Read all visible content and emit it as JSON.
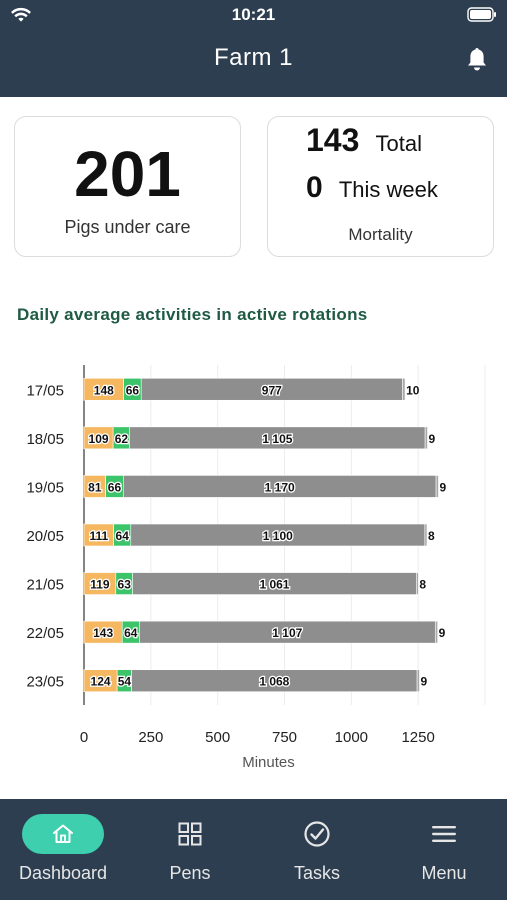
{
  "status": {
    "time": "10:21"
  },
  "header": {
    "title": "Farm 1"
  },
  "stats": {
    "pigs_count": "201",
    "pigs_label": "Pigs under care",
    "mortality_total": "143",
    "mortality_total_label": "Total",
    "mortality_week": "0",
    "mortality_week_label": "This week",
    "mortality_label": "Mortality"
  },
  "chart_title": "Daily average activities in active rotations",
  "chart_data": {
    "type": "bar",
    "orientation": "horizontal",
    "stacked": true,
    "categories": [
      "17/05",
      "18/05",
      "19/05",
      "20/05",
      "21/05",
      "22/05",
      "23/05"
    ],
    "series": [
      {
        "values": [
          148,
          109,
          81,
          111,
          119,
          143,
          124
        ],
        "labels": [
          "148",
          "109",
          "81",
          "111",
          "119",
          "143",
          "124"
        ],
        "color": "#f5b760"
      },
      {
        "values": [
          66,
          62,
          66,
          64,
          63,
          64,
          54
        ],
        "labels": [
          "66",
          "62",
          "66",
          "64",
          "63",
          "64",
          "54"
        ],
        "color": "#3cc46a"
      },
      {
        "values": [
          977,
          1105,
          1170,
          1100,
          1061,
          1107,
          1068
        ],
        "labels": [
          "977",
          "1 105",
          "1 170",
          "1 100",
          "1 061",
          "1 107",
          "1 068"
        ],
        "color": "#8e8e8e"
      },
      {
        "values": [
          10,
          9,
          9,
          8,
          8,
          9,
          9
        ],
        "labels": [
          "10",
          "9",
          "9",
          "8",
          "8",
          "9",
          "9"
        ],
        "color": "#a8a8a8"
      }
    ],
    "xlabel": "Minutes",
    "xlim": [
      0,
      1500
    ],
    "xticks": [
      0,
      250,
      500,
      750,
      1000,
      1250
    ],
    "grid": true
  },
  "nav": [
    {
      "label": "Dashboard",
      "icon": "home-icon",
      "active": true
    },
    {
      "label": "Pens",
      "icon": "grid-icon",
      "active": false
    },
    {
      "label": "Tasks",
      "icon": "check-circle-icon",
      "active": false
    },
    {
      "label": "Menu",
      "icon": "menu-icon",
      "active": false
    }
  ],
  "colors": {
    "header_bg": "#2c3e50",
    "accent": "#3ecfae",
    "title_green": "#1e5a44"
  }
}
